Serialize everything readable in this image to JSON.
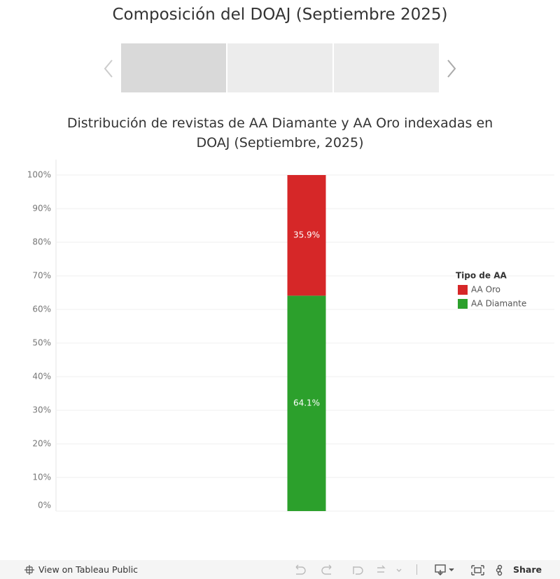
{
  "header": {
    "title": "Composición del DOAJ (Septiembre 2025)"
  },
  "chart_data": {
    "type": "stacked_bar",
    "title": "Distribución de revistas de AA Diamante y AA Oro indexadas en DOAJ (Septiembre, 2025)",
    "categories": [
      null
    ],
    "series": [
      {
        "name": "AA Diamante",
        "color": "#2ca02c",
        "values": [
          64.1
        ],
        "value_labels": [
          "64.1%"
        ]
      },
      {
        "name": "AA Oro",
        "color": "#d62728",
        "values": [
          35.9
        ],
        "value_labels": [
          "35.9%"
        ]
      }
    ],
    "ylim": [
      0,
      100
    ],
    "yticks": [
      {
        "value": 0,
        "label": "0%"
      },
      {
        "value": 10,
        "label": "10%"
      },
      {
        "value": 20,
        "label": "20%"
      },
      {
        "value": 30,
        "label": "30%"
      },
      {
        "value": 40,
        "label": "40%"
      },
      {
        "value": 50,
        "label": "50%"
      },
      {
        "value": 60,
        "label": "60%"
      },
      {
        "value": 70,
        "label": "70%"
      },
      {
        "value": 80,
        "label": "80%"
      },
      {
        "value": 90,
        "label": "90%"
      },
      {
        "value": 100,
        "label": "100%"
      }
    ],
    "grid": true,
    "legend_title": "Tipo de AA",
    "legend_position": "right"
  },
  "toolbar": {
    "view_link": "View on Tableau Public",
    "share": "Share"
  }
}
